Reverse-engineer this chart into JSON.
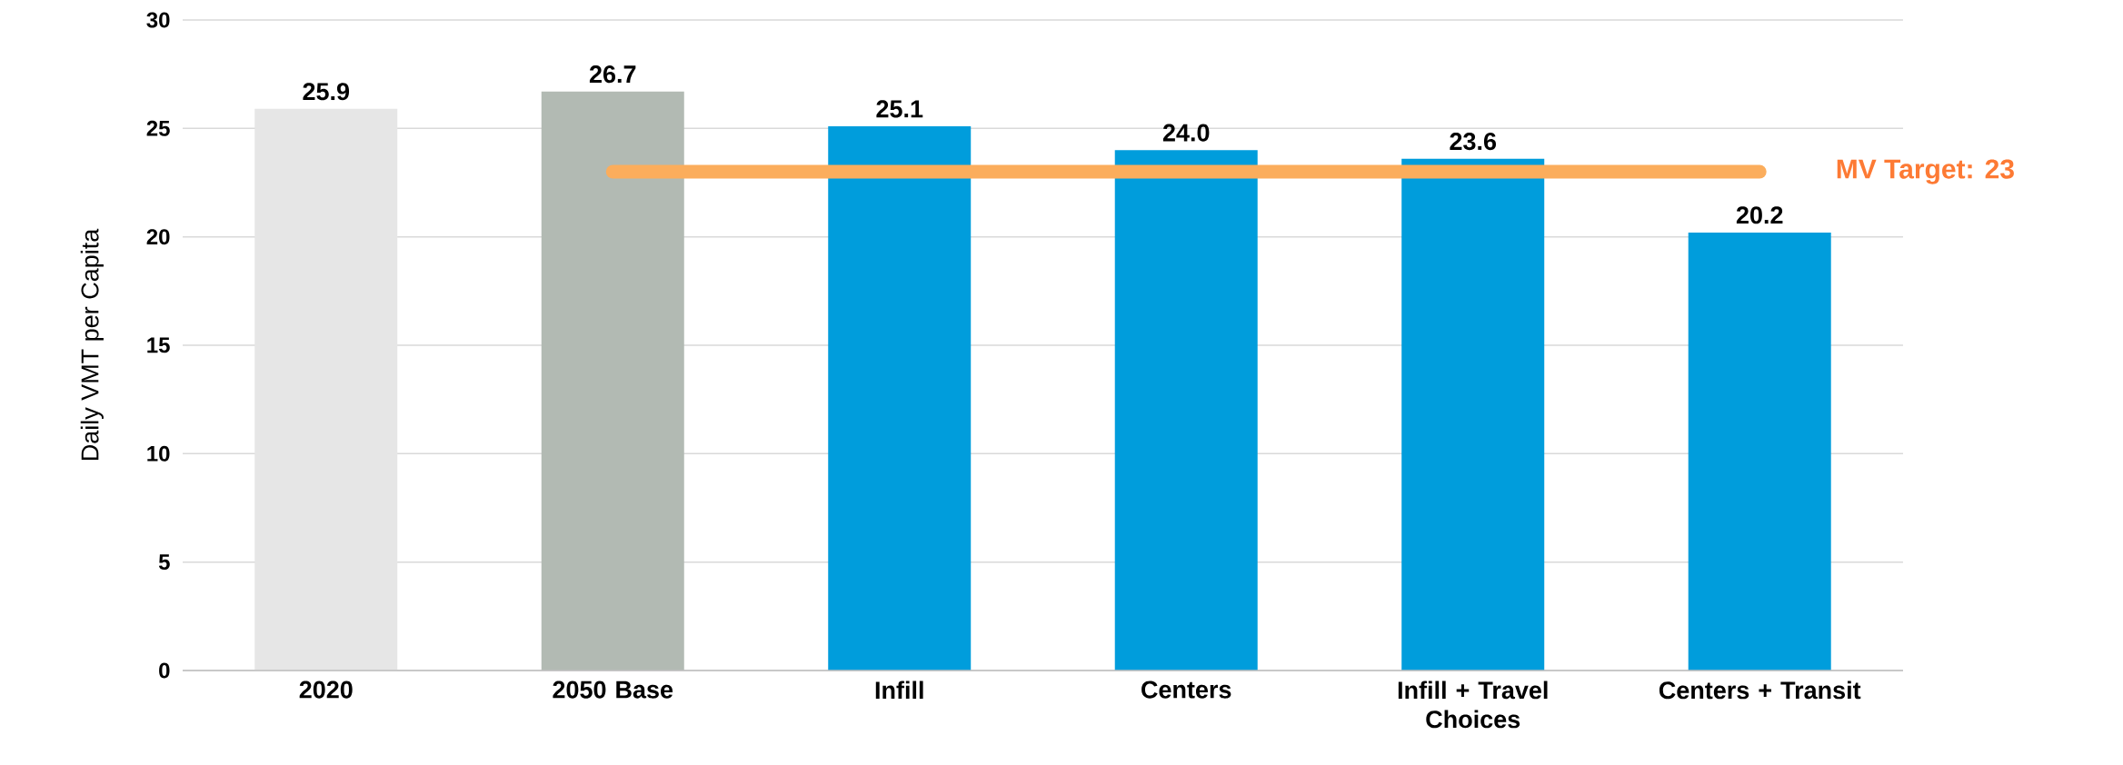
{
  "chart_data": {
    "type": "bar",
    "ylabel": "Daily VMT per Capita",
    "categories": [
      "2020",
      "2050 Base",
      "Infill",
      "Centers",
      "Infill + Travel Choices",
      "Centers + Transit"
    ],
    "values": [
      25.9,
      26.7,
      25.1,
      24.0,
      23.6,
      20.2
    ],
    "colors": [
      "#e6e6e6",
      "#b2bab3",
      "#009ddc",
      "#009ddc",
      "#009ddc",
      "#009ddc"
    ],
    "ylim": [
      0,
      30
    ],
    "yticks": [
      0,
      5,
      10,
      15,
      20,
      25,
      30
    ],
    "grid": "y",
    "value_labels": [
      "25.9",
      "26.7",
      "25.1",
      "24.0",
      "23.6",
      "20.2"
    ],
    "ref_lines": [
      {
        "axis": "y",
        "value": 23,
        "label": "MV Target: 23",
        "color": "#fbad5c"
      }
    ]
  }
}
